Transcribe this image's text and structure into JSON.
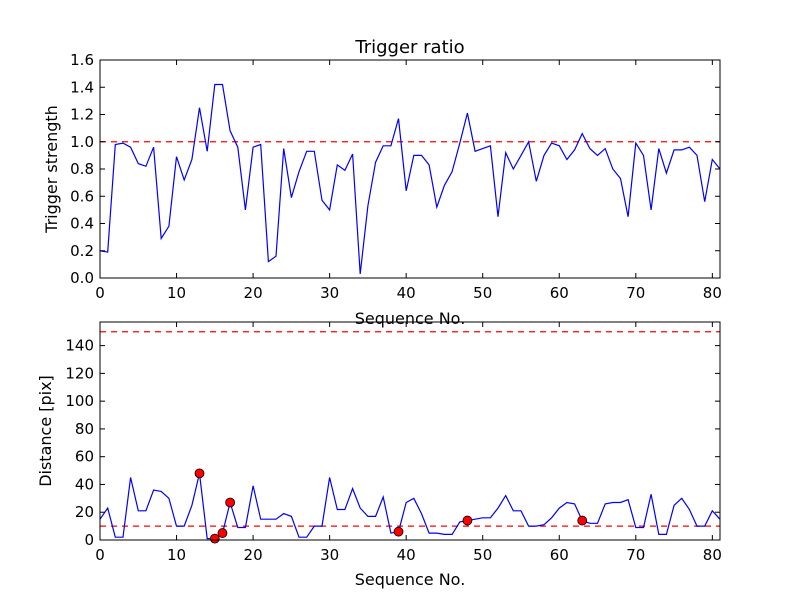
{
  "chart_data": [
    {
      "type": "line",
      "title": "Trigger ratio",
      "xlabel": "Sequence No.",
      "ylabel": "Trigger strength",
      "xlim": [
        0,
        81
      ],
      "ylim": [
        0,
        1.6
      ],
      "xticks": [
        "0",
        "10",
        "20",
        "30",
        "40",
        "50",
        "60",
        "70",
        "80"
      ],
      "yticks": [
        "0.0",
        "0.2",
        "0.4",
        "0.6",
        "0.8",
        "1.0",
        "1.2",
        "1.4",
        "1.6"
      ],
      "grid": false,
      "threshold": {
        "y": 1.0,
        "color": "#ff0000",
        "style": "dashed"
      },
      "series": [
        {
          "color": "#0000ff",
          "x": [
            0,
            1,
            2,
            3,
            4,
            5,
            6,
            7,
            8,
            9,
            10,
            11,
            12,
            13,
            14,
            15,
            16,
            17,
            18,
            19,
            20,
            21,
            22,
            23,
            24,
            25,
            26,
            27,
            28,
            29,
            30,
            31,
            32,
            33,
            34,
            35,
            36,
            37,
            38,
            39,
            40,
            41,
            42,
            43,
            44,
            45,
            46,
            47,
            48,
            49,
            50,
            51,
            52,
            53,
            54,
            55,
            56,
            57,
            58,
            59,
            60,
            61,
            62,
            63,
            64,
            65,
            66,
            67,
            68,
            69,
            70,
            71,
            72,
            73,
            74,
            75,
            76,
            77,
            78,
            79,
            80,
            81
          ],
          "values": [
            0.2,
            0.19,
            0.98,
            0.99,
            0.96,
            0.84,
            0.82,
            0.96,
            0.29,
            0.38,
            0.89,
            0.72,
            0.87,
            1.25,
            0.93,
            1.42,
            1.42,
            1.08,
            0.96,
            0.5,
            0.96,
            0.98,
            0.12,
            0.16,
            0.95,
            0.59,
            0.78,
            0.93,
            0.93,
            0.57,
            0.5,
            0.83,
            0.79,
            0.91,
            0.03,
            0.53,
            0.85,
            0.97,
            0.97,
            1.17,
            0.64,
            0.9,
            0.9,
            0.83,
            0.52,
            0.68,
            0.78,
            0.99,
            1.21,
            0.93,
            0.95,
            0.97,
            0.45,
            0.92,
            0.8,
            0.9,
            1.0,
            0.71,
            0.9,
            0.99,
            0.97,
            0.87,
            0.94,
            1.06,
            0.95,
            0.9,
            0.95,
            0.8,
            0.73,
            0.45,
            0.99,
            0.9,
            0.5,
            0.95,
            0.77,
            0.94,
            0.94,
            0.96,
            0.9,
            0.56,
            0.87,
            0.8
          ]
        }
      ]
    },
    {
      "type": "line",
      "title": "",
      "xlabel": "Sequence No.",
      "ylabel": "Distance [pix]",
      "xlim": [
        0,
        81
      ],
      "ylim": [
        0,
        157
      ],
      "xticks": [
        "0",
        "10",
        "20",
        "30",
        "40",
        "50",
        "60",
        "70",
        "80"
      ],
      "yticks": [
        "0",
        "20",
        "40",
        "60",
        "80",
        "100",
        "120",
        "140"
      ],
      "grid": false,
      "thresholds": [
        {
          "y": 10,
          "color": "#ff0000",
          "style": "dashed"
        },
        {
          "y": 150,
          "color": "#ff0000",
          "style": "dashed"
        }
      ],
      "series": [
        {
          "color": "#0000ff",
          "x": [
            0,
            1,
            2,
            3,
            4,
            5,
            6,
            7,
            8,
            9,
            10,
            11,
            12,
            13,
            14,
            15,
            16,
            17,
            18,
            19,
            20,
            21,
            22,
            23,
            24,
            25,
            26,
            27,
            28,
            29,
            30,
            31,
            32,
            33,
            34,
            35,
            36,
            37,
            38,
            39,
            40,
            41,
            42,
            43,
            44,
            45,
            46,
            47,
            48,
            49,
            50,
            51,
            52,
            53,
            54,
            55,
            56,
            57,
            58,
            59,
            60,
            61,
            62,
            63,
            64,
            65,
            66,
            67,
            68,
            69,
            70,
            71,
            72,
            73,
            74,
            75,
            76,
            77,
            78,
            79,
            80,
            81
          ],
          "values": [
            15,
            23,
            2,
            2,
            45,
            21,
            21,
            36,
            35,
            30,
            10,
            10,
            25,
            48,
            1,
            1,
            5,
            27,
            9,
            9,
            39,
            15,
            15,
            15,
            19,
            17,
            2,
            2,
            10,
            10,
            45,
            22,
            22,
            37,
            23,
            17,
            17,
            31,
            5,
            6,
            27,
            30,
            19,
            5,
            5,
            4,
            4,
            13,
            14,
            15,
            16,
            16,
            23,
            32,
            21,
            21,
            10,
            10,
            11,
            16,
            23,
            27,
            26,
            14,
            12,
            12,
            26,
            27,
            27,
            29,
            9,
            9,
            33,
            4,
            4,
            25,
            30,
            22,
            10,
            10,
            21,
            15
          ]
        },
        {
          "name": "markers",
          "color": "#ff0000",
          "x": [
            13,
            15,
            16,
            17,
            39,
            48,
            63
          ],
          "values": [
            48,
            1,
            5,
            27,
            6,
            14,
            14
          ]
        }
      ]
    }
  ]
}
